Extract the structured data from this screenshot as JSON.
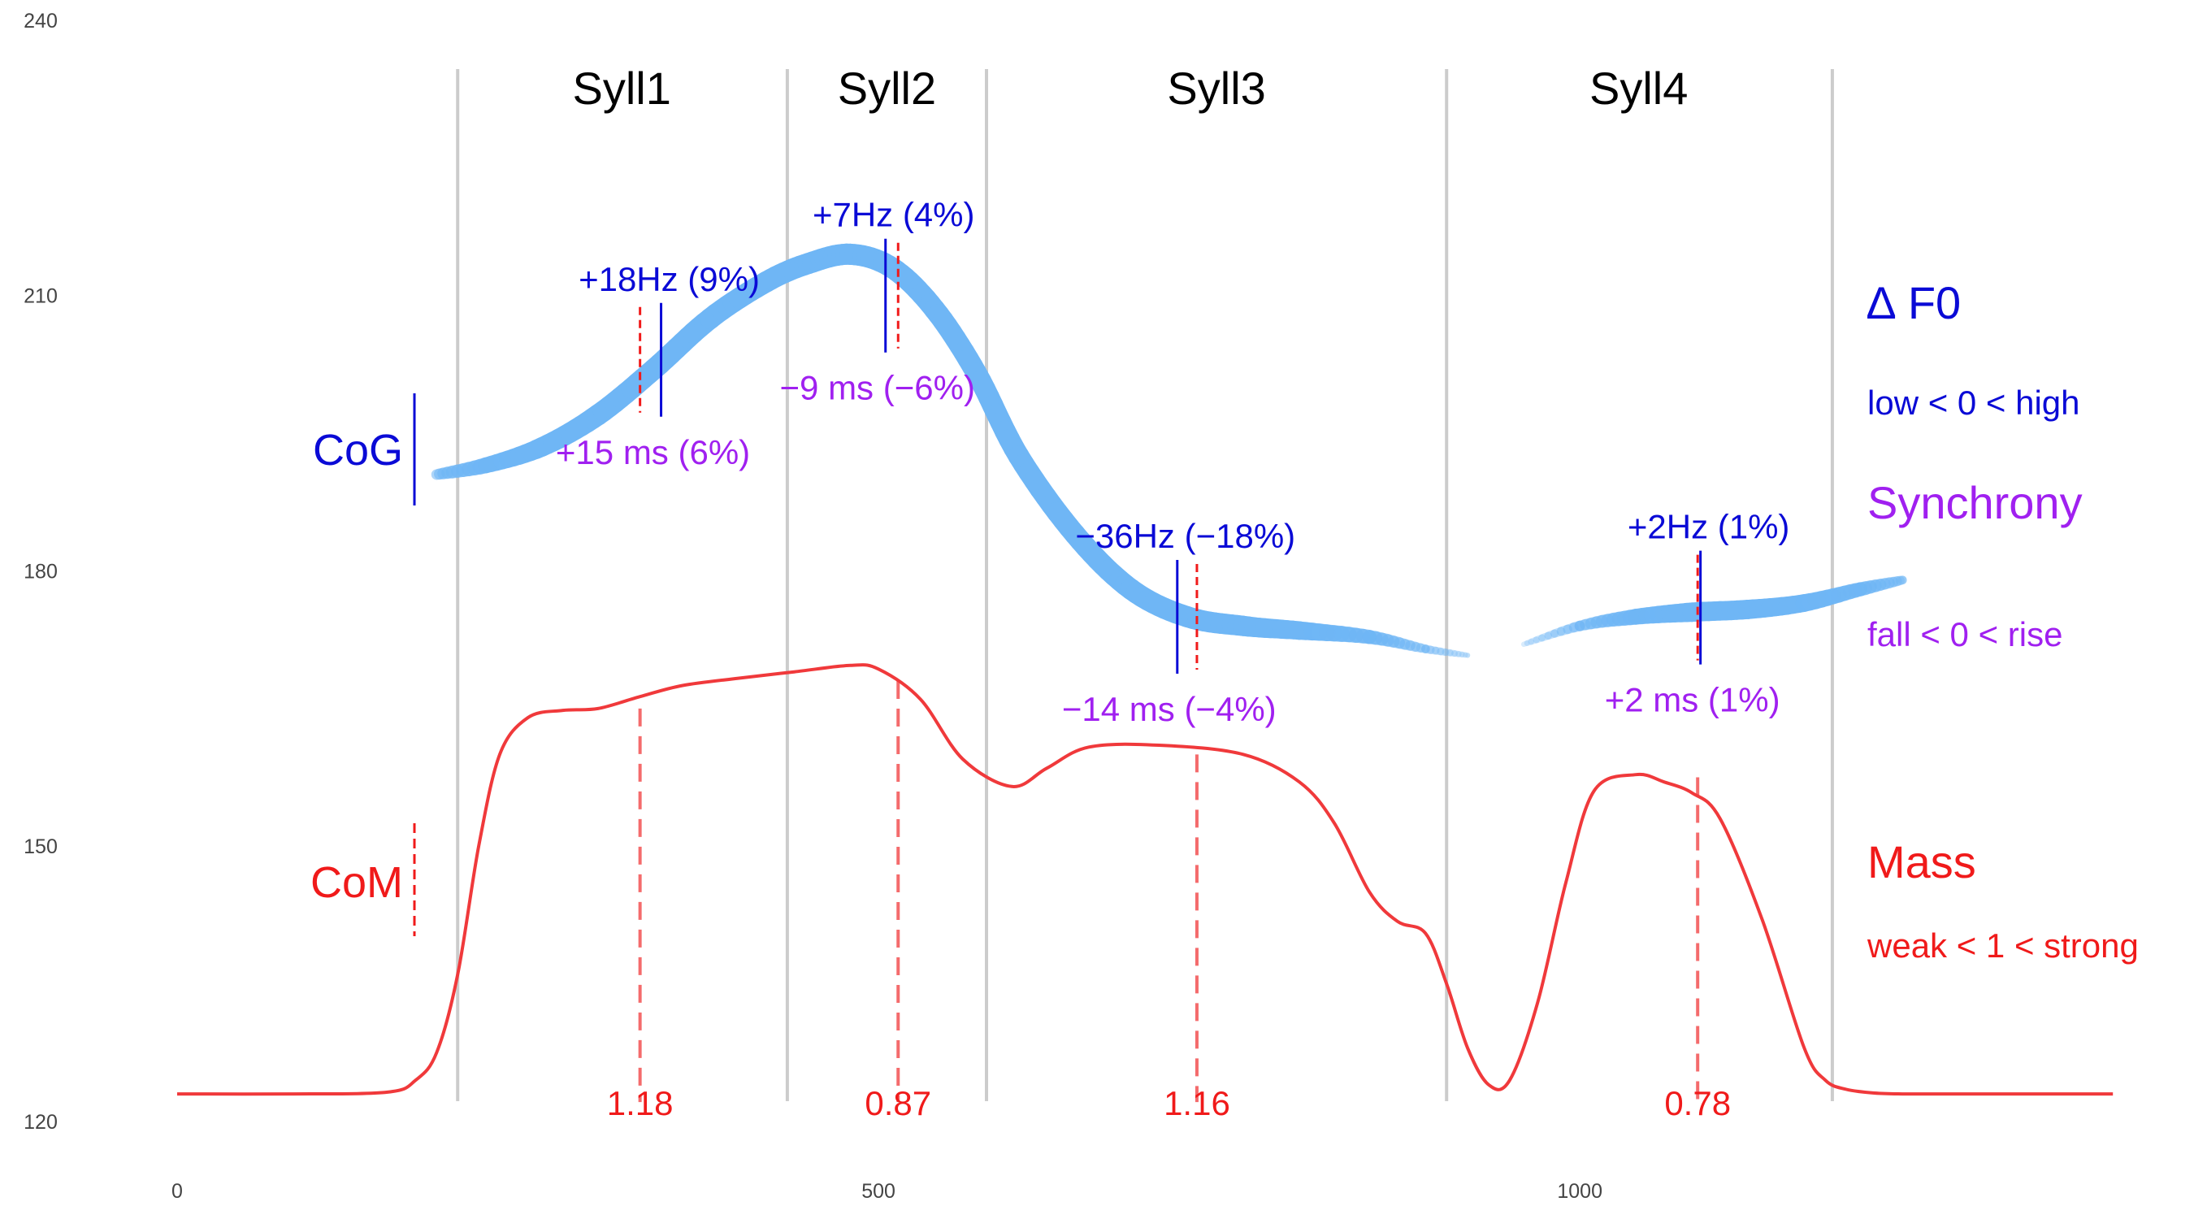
{
  "chart_data": {
    "type": "line",
    "title": "",
    "xlabel": "",
    "ylabel": "",
    "xlim": [
      0,
      1380
    ],
    "ylim": [
      120,
      240
    ],
    "x_ticks": [
      "0",
      "500",
      "1000"
    ],
    "x_tick_values": [
      0,
      500,
      1000
    ],
    "y_ticks": [
      "120",
      "150",
      "180",
      "210",
      "240"
    ],
    "y_tick_values": [
      120,
      150,
      180,
      210,
      240
    ],
    "grid": false,
    "syllable_boundaries": [
      200,
      435,
      577,
      905,
      1180
    ],
    "syllables": [
      {
        "label": "Syll1",
        "center": 317
      },
      {
        "label": "Syll2",
        "center": 506
      },
      {
        "label": "Syll3",
        "center": 741
      },
      {
        "label": "Syll4",
        "center": 1042
      }
    ],
    "series": [
      {
        "name": "",
        "color": "#6fb6f5",
        "x": [
          185,
          220,
          260,
          300,
          340,
          380,
          420,
          450,
          480,
          510,
          540,
          570,
          600,
          640,
          680,
          720,
          760,
          800,
          850,
          890,
          920
        ],
        "y": [
          190.5,
          191.5,
          193.5,
          197,
          202,
          207.5,
          211.5,
          213.5,
          214.5,
          213,
          208.5,
          201.5,
          192.5,
          184,
          178,
          175,
          174,
          173.5,
          172.8,
          171.5,
          170.8
        ],
        "width": [
          0.4,
          0.7,
          0.9,
          1,
          1,
          1,
          1,
          1,
          1,
          1,
          1,
          1,
          1,
          1,
          1,
          1,
          0.95,
          0.85,
          0.6,
          0.3,
          0.1
        ]
      },
      {
        "name": "",
        "color": "#6fb6f5",
        "x": [
          960,
          1000,
          1040,
          1080,
          1120,
          1160,
          1200,
          1230
        ],
        "y": [
          172,
          174,
          175,
          175.5,
          175.8,
          176.5,
          178,
          179
        ],
        "width": [
          0.1,
          0.4,
          0.7,
          0.9,
          0.9,
          0.8,
          0.6,
          0.3
        ]
      },
      {
        "name": "",
        "color": "#f0393b",
        "x": [
          0,
          80,
          150,
          170,
          185,
          200,
          215,
          230,
          250,
          275,
          300,
          330,
          360,
          400,
          440,
          480,
          500,
          530,
          560,
          595,
          620,
          650,
          700,
          760,
          800,
          825,
          850,
          870,
          890,
          905,
          920,
          935,
          950,
          970,
          990,
          1010,
          1040,
          1060,
          1080,
          1100,
          1130,
          1160,
          1175,
          1190,
          1210,
          1230,
          1260,
          1300,
          1380
        ],
        "y": [
          123,
          123,
          123.2,
          124.5,
          127.5,
          136,
          150,
          160,
          164,
          164.8,
          165,
          166.3,
          167.5,
          168.3,
          169,
          169.7,
          169.3,
          166,
          159.5,
          156.5,
          158.5,
          160.8,
          161,
          160,
          157,
          152.5,
          145,
          141.8,
          140.5,
          135,
          128,
          124,
          124.5,
          133,
          146,
          156,
          157.8,
          157,
          155.8,
          153,
          142,
          128,
          124.5,
          123.5,
          123.1,
          123,
          123,
          123,
          123
        ]
      }
    ],
    "group_labels": {
      "cog": "CoG",
      "com": "CoM"
    },
    "annotations": [
      {
        "syllable": "Syll1",
        "delta_f0": "+18Hz (9%)",
        "synchrony": "+15 ms (6%)",
        "mass": "1.18",
        "cog_x": 345,
        "com_x": 330,
        "cog_y": 203,
        "mass_y": 165
      },
      {
        "syllable": "Syll2",
        "delta_f0": "+7Hz (4%)",
        "synchrony": "−9 ms (−6%)",
        "mass": "0.87",
        "cog_x": 505,
        "com_x": 514,
        "cog_y": 210,
        "mass_y": 168
      },
      {
        "syllable": "Syll3",
        "delta_f0": "−36Hz (−18%)",
        "synchrony": "−14 ms (−4%)",
        "mass": "1.16",
        "cog_x": 713,
        "com_x": 727,
        "cog_y": 175,
        "mass_y": 160
      },
      {
        "syllable": "Syll4",
        "delta_f0": "+2Hz (1%)",
        "synchrony": "+2 ms (1%)",
        "mass": "0.78",
        "cog_x": 1086,
        "com_x": 1084,
        "cog_y": 176,
        "mass_y": 157.5
      }
    ],
    "legend": {
      "placement": "right",
      "delta_f0_title": "∆ F0",
      "delta_f0_scale": "low < 0 < high",
      "synchrony_title": "Synchrony",
      "synchrony_scale": "fall < 0 < rise",
      "mass_title": "Mass",
      "mass_scale": "weak < 1 < strong"
    },
    "colors": {
      "f0_band": "#6fb6f5",
      "periodic_energy": "#f0393b",
      "cog_line": "#0a0ad6",
      "com_line": "#f01a1a",
      "synchrony_text": "#a020f0",
      "boundary": "#cccccc"
    }
  }
}
